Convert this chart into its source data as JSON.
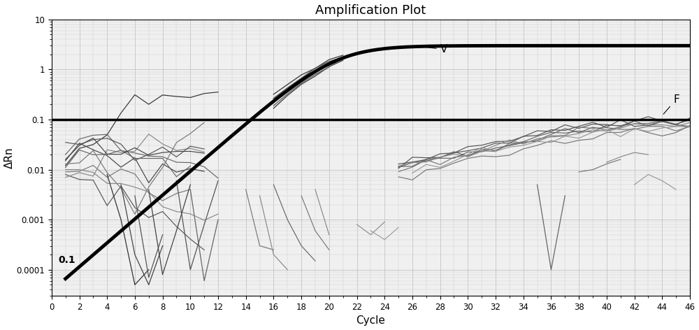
{
  "title": "Amplification Plot",
  "xlabel": "Cycle",
  "ylabel": "ΔRn",
  "xlim": [
    0,
    46
  ],
  "ylim_log": [
    3e-05,
    10
  ],
  "threshold_y": 0.1,
  "threshold_label": "0.1",
  "background_color": "#ffffff",
  "plot_bg_color": "#f0f0f0",
  "grid_color": "#cccccc",
  "xticks": [
    0,
    2,
    4,
    6,
    8,
    10,
    12,
    14,
    16,
    18,
    20,
    22,
    24,
    26,
    28,
    30,
    32,
    34,
    36,
    38,
    40,
    42,
    44,
    46
  ],
  "yticks": [
    0.0001,
    0.001,
    0.01,
    0.1,
    1,
    10
  ],
  "ytick_labels": [
    "0.0001",
    "0.001",
    "0.01",
    "0.1",
    "1",
    "10"
  ]
}
